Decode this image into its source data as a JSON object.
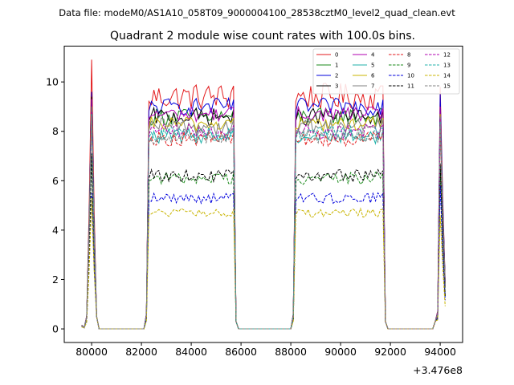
{
  "chart_data": {
    "type": "line",
    "suptitle": "Data file: modeM0/AS1A10_058T09_9000004100_28538cztM0_level2_quad_clean.evt",
    "title": "Quadrant 2 module wise count rates with 100.0s bins.",
    "xlabel": "",
    "ylabel": "",
    "x_offset_label": "+3.476e8",
    "xlim": [
      78900,
      94900
    ],
    "ylim": [
      -0.55,
      11.45
    ],
    "x_ticks": [
      80000,
      82000,
      84000,
      86000,
      88000,
      90000,
      92000,
      94000
    ],
    "x_tick_labels": [
      "80000",
      "82000",
      "84000",
      "86000",
      "88000",
      "90000",
      "92000",
      "94000"
    ],
    "y_ticks": [
      0,
      2,
      4,
      6,
      8,
      10
    ],
    "y_tick_labels": [
      "0",
      "2",
      "4",
      "6",
      "8",
      "10"
    ],
    "legend_position": "top-right",
    "segments": [
      {
        "start": 79600,
        "rise_end": 80000,
        "end": 80100,
        "shape": "spike"
      },
      {
        "start": 82200,
        "rise_end": 82300,
        "end": 85700,
        "shape": "plateau"
      },
      {
        "start": 88100,
        "rise_end": 88200,
        "end": 91700,
        "shape": "plateau"
      },
      {
        "start": 93900,
        "rise_end": 94100,
        "end": 94200,
        "shape": "spike"
      }
    ],
    "series": [
      {
        "name": "0",
        "color": "#e31a1c",
        "dash": false,
        "level": 9.4,
        "noise": 0.55,
        "spike1": 10.9,
        "spike2": 9.8
      },
      {
        "name": "1",
        "color": "#1a8a1a",
        "dash": false,
        "level": 8.6,
        "noise": 0.35,
        "spike1": 9.5,
        "spike2": 9.1
      },
      {
        "name": "2",
        "color": "#0000dd",
        "dash": false,
        "level": 9.0,
        "noise": 0.35,
        "spike1": 9.6,
        "spike2": 9.5
      },
      {
        "name": "3",
        "color": "#000000",
        "dash": false,
        "level": 8.6,
        "noise": 0.35,
        "spike1": 9.4,
        "spike2": 9.0
      },
      {
        "name": "4",
        "color": "#b000b0",
        "dash": false,
        "level": 8.7,
        "noise": 0.3,
        "spike1": 9.3,
        "spike2": 9.0
      },
      {
        "name": "5",
        "color": "#20b2aa",
        "dash": false,
        "level": 7.8,
        "noise": 0.3,
        "spike1": 8.8,
        "spike2": 8.5
      },
      {
        "name": "6",
        "color": "#c8b400",
        "dash": false,
        "level": 8.3,
        "noise": 0.3,
        "spike1": 9.0,
        "spike2": 8.7
      },
      {
        "name": "7",
        "color": "#808080",
        "dash": false,
        "level": 8.2,
        "noise": 0.35,
        "spike1": 9.0,
        "spike2": 8.6
      },
      {
        "name": "8",
        "color": "#e31a1c",
        "dash": true,
        "level": 7.7,
        "noise": 0.3,
        "spike1": 8.6,
        "spike2": 8.2
      },
      {
        "name": "9",
        "color": "#1a8a1a",
        "dash": true,
        "level": 6.1,
        "noise": 0.25,
        "spike1": 7.0,
        "spike2": 6.6
      },
      {
        "name": "10",
        "color": "#0000dd",
        "dash": true,
        "level": 5.3,
        "noise": 0.22,
        "spike1": 5.5,
        "spike2": 5.8
      },
      {
        "name": "11",
        "color": "#000000",
        "dash": true,
        "level": 6.2,
        "noise": 0.25,
        "spike1": 7.1,
        "spike2": 6.7
      },
      {
        "name": "12",
        "color": "#b000b0",
        "dash": true,
        "level": 8.0,
        "noise": 0.3,
        "spike1": 8.8,
        "spike2": 8.5
      },
      {
        "name": "13",
        "color": "#20b2aa",
        "dash": true,
        "level": 7.9,
        "noise": 0.3,
        "spike1": 8.7,
        "spike2": 8.4
      },
      {
        "name": "14",
        "color": "#c8b400",
        "dash": true,
        "level": 4.7,
        "noise": 0.18,
        "spike1": 5.3,
        "spike2": 4.6
      },
      {
        "name": "15",
        "color": "#808080",
        "dash": true,
        "level": 7.8,
        "noise": 0.3,
        "spike1": 8.6,
        "spike2": 8.3
      }
    ]
  }
}
